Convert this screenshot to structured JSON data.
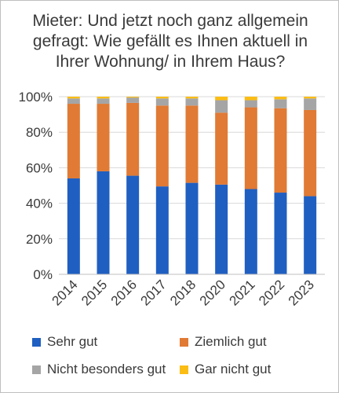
{
  "chart_data": {
    "type": "bar",
    "stacked": true,
    "title_lines": [
      "Mieter: Und jetzt noch ganz allgemein",
      "gefragt: Wie gefällt es Ihnen aktuell in",
      "Ihrer Wohnung/ in Ihrem Haus?"
    ],
    "categories": [
      "2014",
      "2015",
      "2016",
      "2017",
      "2018",
      "2020",
      "2021",
      "2022",
      "2023"
    ],
    "series": [
      {
        "name": "Sehr gut",
        "color": "#1f5fc1",
        "values": [
          54,
          58,
          55.5,
          49.5,
          51.5,
          50.5,
          48,
          46,
          44
        ]
      },
      {
        "name": "Ziemlich gut",
        "color": "#e07a34",
        "values": [
          42,
          38,
          41,
          45.5,
          43.5,
          40.5,
          46,
          47.5,
          48.5
        ]
      },
      {
        "name": "Nicht besonders gut",
        "color": "#a5a5a5",
        "values": [
          3,
          3,
          3,
          4,
          4,
          7,
          4,
          5,
          6.5
        ]
      },
      {
        "name": "Gar nicht gut",
        "color": "#fbbd14",
        "values": [
          1,
          1,
          0.5,
          1,
          1,
          2,
          2,
          1.5,
          1
        ]
      }
    ],
    "y_ticks": [
      "0%",
      "20%",
      "40%",
      "60%",
      "80%",
      "100%"
    ],
    "ylim": [
      0,
      100
    ],
    "grid": true,
    "legend_position": "bottom"
  }
}
